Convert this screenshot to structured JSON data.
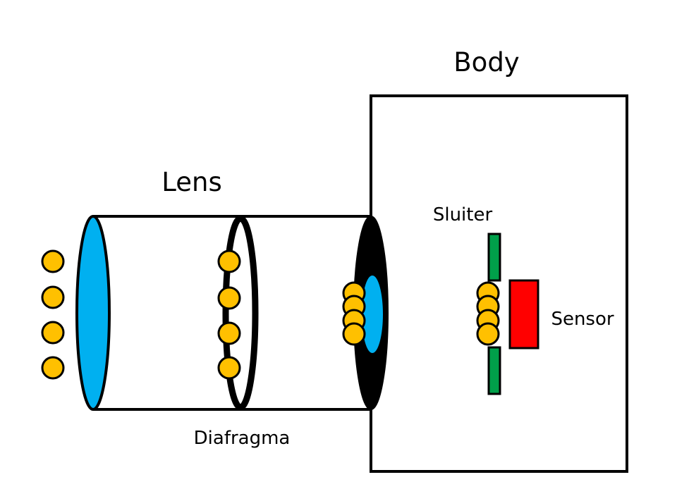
{
  "labels": {
    "body": "Body",
    "lens": "Lens",
    "shutter": "Sluiter",
    "sensor": "Sensor",
    "aperture": "Diafragma"
  },
  "colors": {
    "outline": "#000000",
    "glass": "#00b0f0",
    "light": "#ffc000",
    "shutter": "#00a04a",
    "sensor": "#ff0000",
    "background": "#ffffff"
  },
  "light_rays": {
    "entering_count": 4,
    "at_aperture_count": 4,
    "at_mount_count": 4,
    "at_shutter_count": 4
  }
}
